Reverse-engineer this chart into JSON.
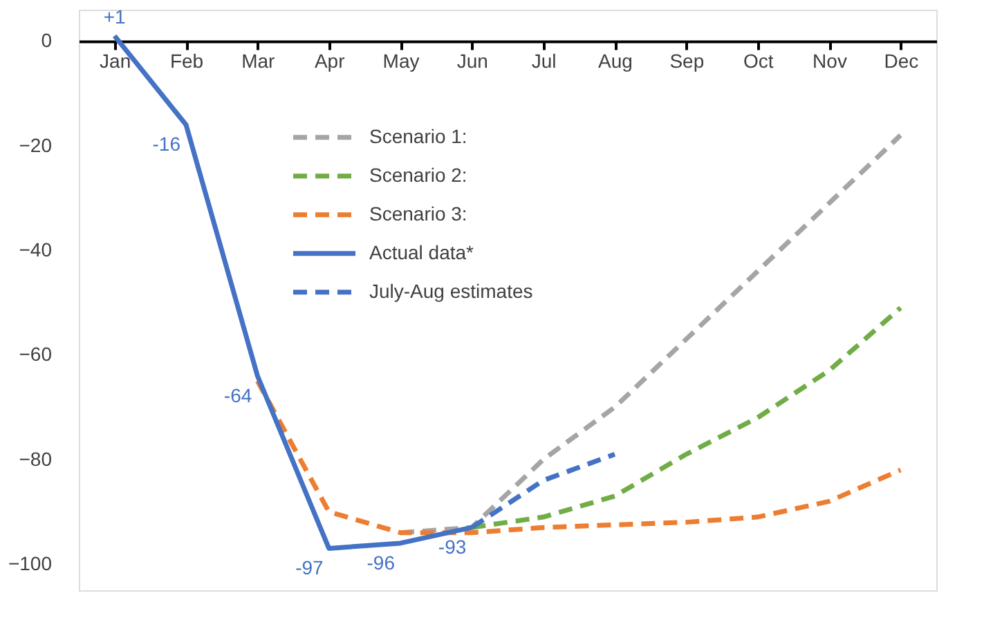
{
  "chart_data": {
    "type": "line",
    "categories": [
      "Jan",
      "Feb",
      "Mar",
      "Apr",
      "May",
      "Jun",
      "Jul",
      "Aug",
      "Sep",
      "Oct",
      "Nov",
      "Dec"
    ],
    "series": [
      {
        "name": "Scenario 1:",
        "color": "#a5a5a5",
        "line_style": "dashed",
        "values": [
          null,
          null,
          null,
          null,
          -94,
          -93,
          -80,
          -70,
          -57,
          -44,
          -31,
          -18
        ]
      },
      {
        "name": "Scenario 2:",
        "color": "#70ad47",
        "line_style": "dashed",
        "values": [
          null,
          null,
          null,
          null,
          null,
          -93,
          -91,
          -87,
          -79,
          -72,
          -63,
          -51
        ]
      },
      {
        "name": "Scenario 3:",
        "color": "#ed7d31",
        "line_style": "dashed",
        "values": [
          null,
          null,
          -65,
          -90,
          -94,
          -94,
          -93,
          -92.5,
          -92,
          -91,
          -88,
          -82
        ]
      },
      {
        "name": "Actual data*",
        "color": "#4472c4",
        "line_style": "solid",
        "values": [
          1,
          -16,
          -64,
          -97,
          -96,
          -93,
          null,
          null,
          null,
          null,
          null,
          null
        ],
        "value_labels": [
          "+1",
          "-16",
          "-64",
          "-97",
          "-96",
          "-93",
          null,
          null,
          null,
          null,
          null,
          null
        ]
      },
      {
        "name": "July-Aug estimates",
        "color": "#4472c4",
        "line_style": "dashed",
        "values": [
          null,
          null,
          null,
          null,
          null,
          -93,
          -84,
          -79,
          null,
          null,
          null,
          null
        ]
      }
    ],
    "ylim": [
      -105,
      6
    ],
    "yticks": [
      0,
      -20,
      -40,
      -60,
      -80,
      -100
    ],
    "grid": false,
    "legend": "top"
  }
}
